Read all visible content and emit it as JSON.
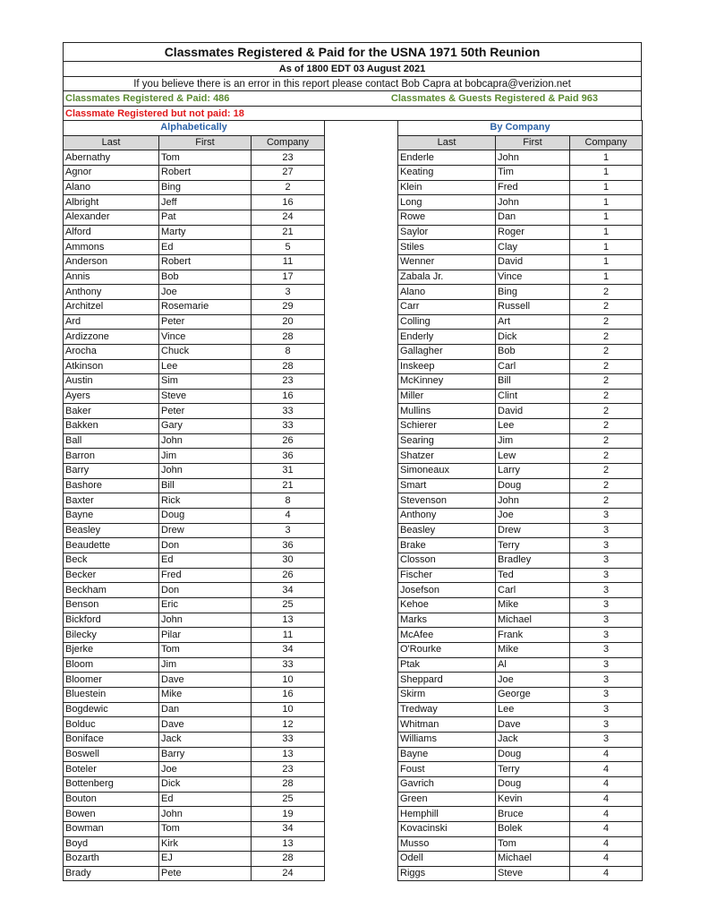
{
  "header": {
    "title": "Classmates Registered & Paid for the USNA 1971 50th Reunion",
    "as_of": "As of 1800 EDT 03 August 2021",
    "note": "If you believe there is an error in this report please contact Bob Capra at bobcapra@verizion.net",
    "registered_paid": "Classmates Registered & Paid: 486",
    "guests_paid": "Classmates & Guests Registered & Paid  963",
    "not_paid": "Classmate Registered but not paid: 18",
    "colors": {
      "green": "#5c8a32",
      "red": "#e0191b",
      "section": "#2e64a8"
    }
  },
  "columns": {
    "last": "Last",
    "first": "First",
    "company": "Company"
  },
  "alphabetical": {
    "title": "Alphabetically",
    "rows": [
      [
        "Abernathy",
        "Tom",
        "23"
      ],
      [
        "Agnor",
        "Robert",
        "27"
      ],
      [
        "Alano",
        "Bing",
        "2"
      ],
      [
        "Albright",
        "Jeff",
        "16"
      ],
      [
        "Alexander",
        "Pat",
        "24"
      ],
      [
        "Alford",
        "Marty",
        "21"
      ],
      [
        "Ammons",
        "Ed",
        "5"
      ],
      [
        "Anderson",
        "Robert",
        "11"
      ],
      [
        "Annis",
        "Bob",
        "17"
      ],
      [
        "Anthony",
        "Joe",
        "3"
      ],
      [
        "Architzel",
        "Rosemarie",
        "29"
      ],
      [
        "Ard",
        "Peter",
        "20"
      ],
      [
        "Ardizzone",
        "Vince",
        "28"
      ],
      [
        "Arocha",
        "Chuck",
        "8"
      ],
      [
        "Atkinson",
        "Lee",
        "28"
      ],
      [
        "Austin",
        "Sim",
        "23"
      ],
      [
        "Ayers",
        "Steve",
        "16"
      ],
      [
        "Baker",
        "Peter",
        "33"
      ],
      [
        "Bakken",
        "Gary",
        "33"
      ],
      [
        "Ball",
        "John",
        "26"
      ],
      [
        "Barron",
        "Jim",
        "36"
      ],
      [
        "Barry",
        "John",
        "31"
      ],
      [
        "Bashore",
        "Bill",
        "21"
      ],
      [
        "Baxter",
        "Rick",
        "8"
      ],
      [
        "Bayne",
        "Doug",
        "4"
      ],
      [
        "Beasley",
        "Drew",
        "3"
      ],
      [
        "Beaudette",
        "Don",
        "36"
      ],
      [
        "Beck",
        "Ed",
        "30"
      ],
      [
        "Becker",
        "Fred",
        "26"
      ],
      [
        "Beckham",
        "Don",
        "34"
      ],
      [
        "Benson",
        "Eric",
        "25"
      ],
      [
        "Bickford",
        "John",
        "13"
      ],
      [
        "Bilecky",
        "Pilar",
        "11"
      ],
      [
        "Bjerke",
        "Tom",
        "34"
      ],
      [
        "Bloom",
        "Jim",
        "33"
      ],
      [
        "Bloomer",
        "Dave",
        "10"
      ],
      [
        "Bluestein",
        "Mike",
        "16"
      ],
      [
        "Bogdewic",
        "Dan",
        "10"
      ],
      [
        "Bolduc",
        "Dave",
        "12"
      ],
      [
        "Boniface",
        "Jack",
        "33"
      ],
      [
        "Boswell",
        "Barry",
        "13"
      ],
      [
        "Boteler",
        "Joe",
        "23"
      ],
      [
        "Bottenberg",
        "Dick",
        "28"
      ],
      [
        "Bouton",
        "Ed",
        "25"
      ],
      [
        "Bowen",
        "John",
        "19"
      ],
      [
        "Bowman",
        "Tom",
        "34"
      ],
      [
        "Boyd",
        "Kirk",
        "13"
      ],
      [
        "Bozarth",
        "EJ",
        "28"
      ],
      [
        "Brady",
        "Pete",
        "24"
      ]
    ]
  },
  "by_company": {
    "title": "By Company",
    "rows": [
      [
        "Enderle",
        "John",
        "1"
      ],
      [
        "Keating",
        "Tim",
        "1"
      ],
      [
        "Klein",
        "Fred",
        "1"
      ],
      [
        "Long",
        "John",
        "1"
      ],
      [
        "Rowe",
        "Dan",
        "1"
      ],
      [
        "Saylor",
        "Roger",
        "1"
      ],
      [
        "Stiles",
        "Clay",
        "1"
      ],
      [
        "Wenner",
        "David",
        "1"
      ],
      [
        "Zabala Jr.",
        "Vince",
        "1"
      ],
      [
        "Alano",
        "Bing",
        "2"
      ],
      [
        "Carr",
        "Russell",
        "2"
      ],
      [
        "Colling",
        "Art",
        "2"
      ],
      [
        "Enderly",
        "Dick",
        "2"
      ],
      [
        "Gallagher",
        "Bob",
        "2"
      ],
      [
        "Inskeep",
        "Carl",
        "2"
      ],
      [
        "McKinney",
        "Bill",
        "2"
      ],
      [
        "Miller",
        "Clint",
        "2"
      ],
      [
        "Mullins",
        "David",
        "2"
      ],
      [
        "Schierer",
        "Lee",
        "2"
      ],
      [
        "Searing",
        "Jim",
        "2"
      ],
      [
        "Shatzer",
        "Lew",
        "2"
      ],
      [
        "Simoneaux",
        "Larry",
        "2"
      ],
      [
        "Smart",
        "Doug",
        "2"
      ],
      [
        "Stevenson",
        "John",
        "2"
      ],
      [
        "Anthony",
        "Joe",
        "3"
      ],
      [
        "Beasley",
        "Drew",
        "3"
      ],
      [
        "Brake",
        "Terry",
        "3"
      ],
      [
        "Closson",
        "Bradley",
        "3"
      ],
      [
        "Fischer",
        "Ted",
        "3"
      ],
      [
        "Josefson",
        "Carl",
        "3"
      ],
      [
        "Kehoe",
        "Mike",
        "3"
      ],
      [
        "Marks",
        "Michael",
        "3"
      ],
      [
        "McAfee",
        "Frank",
        "3"
      ],
      [
        "O'Rourke",
        "Mike",
        "3"
      ],
      [
        "Ptak",
        "Al",
        "3"
      ],
      [
        "Sheppard",
        "Joe",
        "3"
      ],
      [
        "Skirm",
        "George",
        "3"
      ],
      [
        "Tredway",
        "Lee",
        "3"
      ],
      [
        "Whitman",
        "Dave",
        "3"
      ],
      [
        "Williams",
        "Jack",
        "3"
      ],
      [
        "Bayne",
        "Doug",
        "4"
      ],
      [
        "Foust",
        "Terry",
        "4"
      ],
      [
        "Gavrich",
        "Doug",
        "4"
      ],
      [
        "Green",
        "Kevin",
        "4"
      ],
      [
        "Hemphill",
        "Bruce",
        "4"
      ],
      [
        "Kovacinski",
        "Bolek",
        "4"
      ],
      [
        "Musso",
        "Tom",
        "4"
      ],
      [
        "Odell",
        "Michael",
        "4"
      ],
      [
        "Riggs",
        "Steve",
        "4"
      ]
    ]
  }
}
